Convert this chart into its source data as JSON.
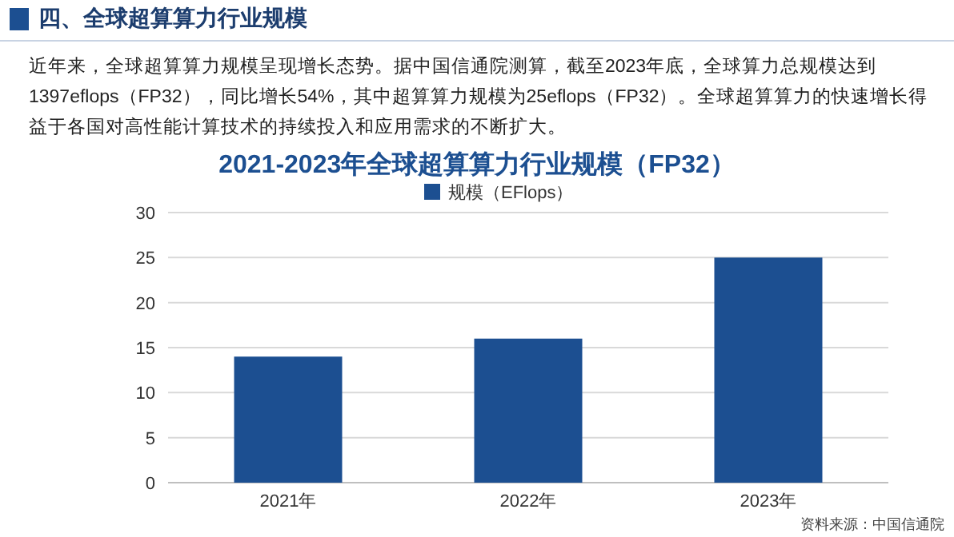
{
  "chart_data": {
    "type": "bar",
    "title": "2021-2023年全球超算算力行业规模（FP32）",
    "subtitle": "近年来，全球超算算力规模呈现增长态势。据中国信通院测算，截至2023年底，全球算力总规模达到1397eflops（FP32），同比增长54%，其中超算算力规模为25eflops（FP32）。全球超算算力的快速增长得益于各国对高性能计算技术的持续投入和应用需求的不断扩大。",
    "annotations": [
      "四、全球超算算力行业规模",
      "资料来源：中国信通院"
    ],
    "categories": [
      "2021年",
      "2022年",
      "2023年"
    ],
    "series": [
      {
        "name": "规模（EFlops）",
        "color": "#1c4f91",
        "values": [
          14,
          16,
          25
        ]
      }
    ],
    "ylim": [
      0,
      30
    ],
    "yticks": [
      0,
      5,
      10,
      15,
      20,
      25,
      30
    ],
    "grid": "y",
    "legend": "top"
  }
}
